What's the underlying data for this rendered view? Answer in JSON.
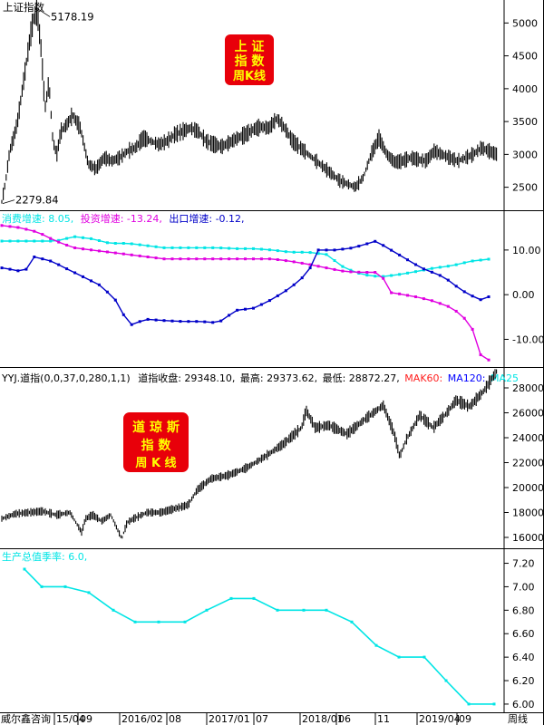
{
  "panels": {
    "p1": {
      "title": "上证指数",
      "badge": [
        "上 证",
        "指 数",
        "周K线"
      ],
      "high_label": "5178.19",
      "low_label": "2279.84"
    },
    "p2": {
      "legend": [
        {
          "text": "消费增速: 8.05,",
          "color": "#00E5E5"
        },
        {
          "text": "投资增速: -13.24,",
          "color": "#E000E0"
        },
        {
          "text": "出口增速: -0.12,",
          "color": "#0000C8"
        }
      ]
    },
    "p3": {
      "legend": [
        {
          "text": "YYJ.道指(0,0,37,0,280,1,1)",
          "color": "#000000"
        },
        {
          "text": "道指收盘: 29348.10,",
          "color": "#000000"
        },
        {
          "text": "最高: 29373.62,",
          "color": "#000000"
        },
        {
          "text": "最低: 28872.27,",
          "color": "#000000"
        },
        {
          "text": "MAK60:",
          "color": "#FF2020"
        },
        {
          "text": "MA120:",
          "color": "#0000FF"
        },
        {
          "text": "MA25",
          "color": "#00E5E5"
        }
      ],
      "badge": [
        "道 琼 斯",
        "指    数",
        "周  K 线"
      ]
    },
    "p4": {
      "legend": [
        {
          "text": "生产总值季率: 6.0,",
          "color": "#00E5E5"
        }
      ]
    }
  },
  "footer": {
    "brand": "威尔鑫咨询",
    "x_labels": [
      "15/04",
      "09",
      "2016/02",
      "08",
      "2017/01",
      "07",
      "2018/01",
      "06",
      "11",
      "2019/04",
      "09"
    ],
    "period": "周线"
  },
  "chart_data": [
    {
      "type": "line",
      "id": "shanghai",
      "title": "上证指数",
      "y_ticks": [
        2500,
        3000,
        3500,
        4000,
        4500,
        5000
      ],
      "ylim": [
        2150,
        5350
      ],
      "annotations": [
        {
          "label": "5178.19",
          "value": 5178.19
        },
        {
          "label": "2279.84",
          "value": 2279.84
        }
      ],
      "x": [
        0,
        2,
        4,
        6,
        8,
        10,
        12,
        14,
        16,
        18,
        20,
        22,
        24,
        26,
        28,
        30,
        33,
        36,
        40,
        44,
        48,
        52,
        56,
        60,
        64,
        68,
        72,
        76,
        80,
        84,
        88,
        92,
        96,
        100,
        104,
        108,
        112,
        116,
        120,
        124,
        128,
        132,
        136,
        140,
        144,
        148,
        152,
        156,
        160,
        164,
        168,
        172,
        176,
        180,
        184,
        188,
        192,
        196,
        200,
        204,
        208,
        212,
        216,
        220,
        224,
        228,
        232,
        236,
        240,
        244,
        248,
        252
      ],
      "values": [
        2280,
        2600,
        3050,
        3250,
        3500,
        3900,
        4300,
        4700,
        5050,
        5178,
        4600,
        3700,
        4100,
        3200,
        3000,
        3350,
        3450,
        3600,
        3400,
        2850,
        2780,
        2950,
        2900,
        2950,
        3050,
        3100,
        3250,
        3200,
        3150,
        3200,
        3300,
        3350,
        3400,
        3350,
        3200,
        3150,
        3120,
        3180,
        3250,
        3300,
        3380,
        3420,
        3400,
        3550,
        3400,
        3200,
        3100,
        3000,
        2900,
        2800,
        2700,
        2600,
        2550,
        2500,
        2650,
        3000,
        3250,
        3000,
        2880,
        2900,
        2950,
        2920,
        2900,
        3050,
        3000,
        2950,
        2900,
        2950,
        3000,
        3100,
        3050,
        3000
      ]
    },
    {
      "type": "line",
      "id": "macro",
      "y_ticks": [
        10.0,
        0.0,
        -10.0
      ],
      "ylim": [
        -16,
        18.5
      ],
      "series": [
        {
          "name": "消费增速",
          "color": "#00E5E5",
          "x": [
            0,
            20,
            40,
            60,
            70,
            80,
            100,
            120,
            140,
            160,
            180,
            200,
            220,
            240,
            260,
            280,
            300,
            320,
            340,
            360,
            380,
            400,
            420,
            440,
            460,
            480,
            500,
            520,
            545
          ],
          "values": [
            12.0,
            12.0,
            12.0,
            12.0,
            12.5,
            13.0,
            12.5,
            11.5,
            11.5,
            11.0,
            10.5,
            10.5,
            10.5,
            10.5,
            10.3,
            10.3,
            10.0,
            9.5,
            9.5,
            9.0,
            6.0,
            4.5,
            4.0,
            4.5,
            5.2,
            6.0,
            6.5,
            7.5,
            8.05
          ]
        },
        {
          "name": "投资增速",
          "color": "#E000E0",
          "x": [
            0,
            20,
            40,
            60,
            80,
            100,
            120,
            140,
            160,
            180,
            200,
            220,
            240,
            260,
            280,
            300,
            320,
            340,
            360,
            380,
            400,
            420,
            430,
            440,
            460,
            480,
            500,
            520,
            535,
            545
          ],
          "values": [
            15.5,
            15.0,
            14.0,
            12.0,
            10.5,
            10.0,
            9.5,
            9.0,
            8.5,
            8.0,
            8.0,
            8.0,
            8.0,
            8.0,
            8.0,
            8.0,
            7.5,
            6.8,
            6.0,
            5.2,
            5.0,
            5.0,
            0.5,
            0.2,
            -0.5,
            -1.5,
            -3.0,
            -6.5,
            -16.0,
            -13.24
          ]
        },
        {
          "name": "出口增速",
          "color": "#0000C8",
          "x": [
            0,
            15,
            25,
            35,
            55,
            70,
            90,
            110,
            130,
            140,
            160,
            180,
            200,
            220,
            240,
            260,
            280,
            300,
            320,
            340,
            350,
            370,
            390,
            415,
            440,
            465,
            490,
            510,
            530,
            545
          ],
          "values": [
            6.0,
            5.5,
            5.0,
            8.5,
            7.5,
            6.0,
            4.0,
            2.0,
            -2.0,
            -7.0,
            -5.5,
            -5.8,
            -6.0,
            -6.0,
            -6.3,
            -3.5,
            -3.0,
            -1.0,
            1.5,
            5.0,
            10.0,
            10.0,
            10.5,
            12.0,
            9.0,
            6.0,
            4.0,
            1.0,
            -1.2,
            -0.12
          ]
        }
      ]
    },
    {
      "type": "line",
      "id": "dow",
      "title": "道指收盘",
      "y_ticks": [
        16000,
        18000,
        20000,
        22000,
        24000,
        26000,
        28000
      ],
      "ylim": [
        15200,
        29600
      ],
      "x": [
        0,
        15,
        30,
        45,
        60,
        75,
        88,
        92,
        100,
        110,
        120,
        132,
        138,
        145,
        160,
        175,
        190,
        205,
        215,
        230,
        250,
        270,
        290,
        310,
        330,
        335,
        345,
        360,
        380,
        400,
        420,
        432,
        438,
        445,
        460,
        475,
        490,
        500,
        515,
        530,
        545
      ],
      "values": [
        17500,
        17900,
        18000,
        18100,
        17800,
        18000,
        16400,
        17500,
        17800,
        17300,
        17800,
        15900,
        17200,
        17500,
        18000,
        18000,
        18300,
        18600,
        19800,
        20700,
        21000,
        21600,
        22500,
        23500,
        24800,
        26200,
        24800,
        25000,
        24300,
        25500,
        26600,
        24300,
        22500,
        23800,
        25800,
        24800,
        26000,
        27000,
        26500,
        27700,
        29350
      ]
    },
    {
      "type": "line",
      "id": "gdp",
      "title": "生产总值季率",
      "y_ticks": [
        6.0,
        6.2,
        6.4,
        6.6,
        6.8,
        7.0,
        7.2
      ],
      "ylim": [
        5.93,
        7.32
      ],
      "series": [
        {
          "name": "生产总值季率",
          "color": "#00E5E5",
          "x": [
            27,
            46,
            72,
            98,
            125,
            149,
            175,
            204,
            228,
            255,
            280,
            306,
            335,
            360,
            388,
            415,
            440,
            468,
            492,
            517,
            545
          ],
          "values": [
            7.15,
            7.0,
            7.0,
            6.95,
            6.8,
            6.7,
            6.7,
            6.7,
            6.8,
            6.9,
            6.9,
            6.8,
            6.8,
            6.8,
            6.7,
            6.5,
            6.4,
            6.4,
            6.2,
            6.0,
            6.0
          ]
        }
      ]
    }
  ]
}
